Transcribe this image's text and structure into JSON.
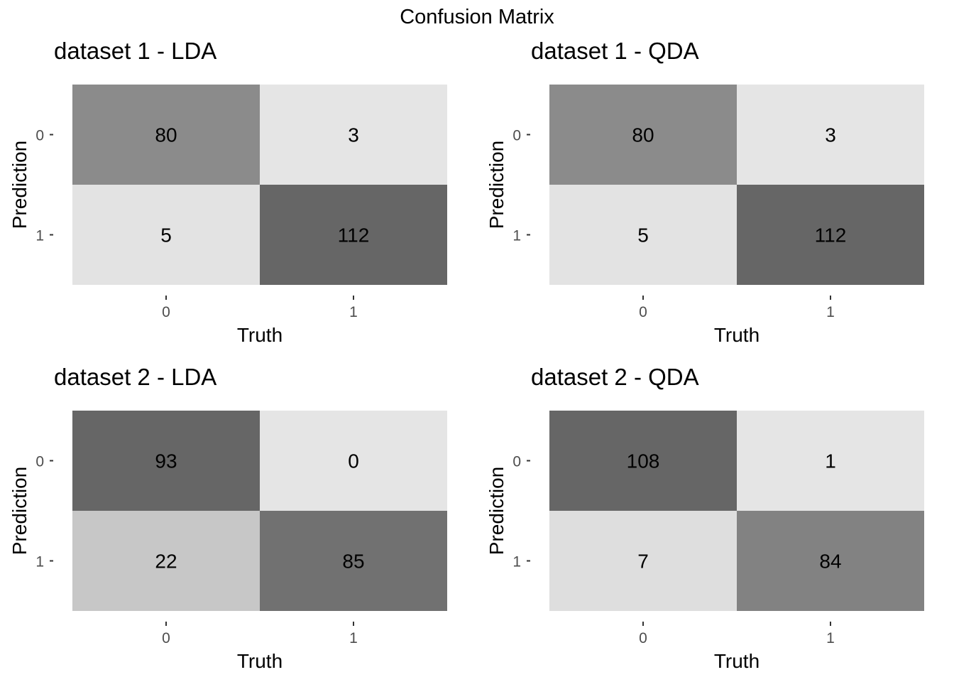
{
  "chart_data": {
    "title": "Confusion Matrix",
    "panels": [
      {
        "type": "heatmap",
        "title": "dataset 1 - LDA",
        "xlabel": "Truth",
        "ylabel": "Prediction",
        "x_categories": [
          "0",
          "1"
        ],
        "y_categories": [
          "0",
          "1"
        ],
        "cells": [
          {
            "truth": "0",
            "prediction": "0",
            "value": 80
          },
          {
            "truth": "1",
            "prediction": "0",
            "value": 3
          },
          {
            "truth": "0",
            "prediction": "1",
            "value": 5
          },
          {
            "truth": "1",
            "prediction": "1",
            "value": 112
          }
        ]
      },
      {
        "type": "heatmap",
        "title": "dataset 1 - QDA",
        "xlabel": "Truth",
        "ylabel": "Prediction",
        "x_categories": [
          "0",
          "1"
        ],
        "y_categories": [
          "0",
          "1"
        ],
        "cells": [
          {
            "truth": "0",
            "prediction": "0",
            "value": 80
          },
          {
            "truth": "1",
            "prediction": "0",
            "value": 3
          },
          {
            "truth": "0",
            "prediction": "1",
            "value": 5
          },
          {
            "truth": "1",
            "prediction": "1",
            "value": 112
          }
        ]
      },
      {
        "type": "heatmap",
        "title": "dataset 2 - LDA",
        "xlabel": "Truth",
        "ylabel": "Prediction",
        "x_categories": [
          "0",
          "1"
        ],
        "y_categories": [
          "0",
          "1"
        ],
        "cells": [
          {
            "truth": "0",
            "prediction": "0",
            "value": 93
          },
          {
            "truth": "1",
            "prediction": "0",
            "value": 0
          },
          {
            "truth": "0",
            "prediction": "1",
            "value": 22
          },
          {
            "truth": "1",
            "prediction": "1",
            "value": 85
          }
        ]
      },
      {
        "type": "heatmap",
        "title": "dataset 2 - QDA",
        "xlabel": "Truth",
        "ylabel": "Prediction",
        "x_categories": [
          "0",
          "1"
        ],
        "y_categories": [
          "0",
          "1"
        ],
        "cells": [
          {
            "truth": "0",
            "prediction": "0",
            "value": 108
          },
          {
            "truth": "1",
            "prediction": "0",
            "value": 1
          },
          {
            "truth": "0",
            "prediction": "1",
            "value": 7
          },
          {
            "truth": "1",
            "prediction": "1",
            "value": 84
          }
        ]
      }
    ],
    "fill_scale": {
      "low_color": "#e5e5e5",
      "high_color": "#666666"
    }
  }
}
